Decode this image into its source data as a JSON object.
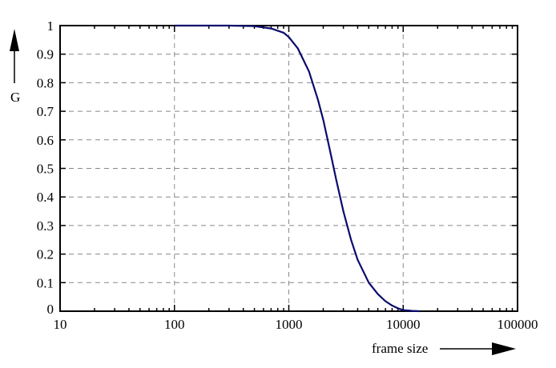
{
  "chart_data": {
    "type": "line",
    "title": "",
    "xlabel": "frame size",
    "ylabel": "G",
    "xscale": "log",
    "xlim": [
      10,
      100000
    ],
    "ylim": [
      0,
      1
    ],
    "xticks": [
      "10",
      "100",
      "1000",
      "10000",
      "100000"
    ],
    "yticks": [
      "0",
      "0.1",
      "0.2",
      "0.3",
      "0.4",
      "0.5",
      "0.6",
      "0.7",
      "0.8",
      "0.9",
      "1"
    ],
    "grid": true,
    "series": [
      {
        "name": "G",
        "color": "#0a0a6e",
        "x": [
          100,
          300,
          500,
          700,
          900,
          1000,
          1200,
          1500,
          1800,
          2000,
          2300,
          2600,
          3000,
          3500,
          4000,
          5000,
          6000,
          7000,
          8000,
          9000,
          10000,
          12000,
          14000
        ],
        "y": [
          1.0,
          1.0,
          0.998,
          0.99,
          0.975,
          0.96,
          0.92,
          0.84,
          0.74,
          0.67,
          0.56,
          0.46,
          0.35,
          0.25,
          0.18,
          0.1,
          0.06,
          0.035,
          0.02,
          0.01,
          0.004,
          0.001,
          0.0
        ]
      }
    ]
  }
}
